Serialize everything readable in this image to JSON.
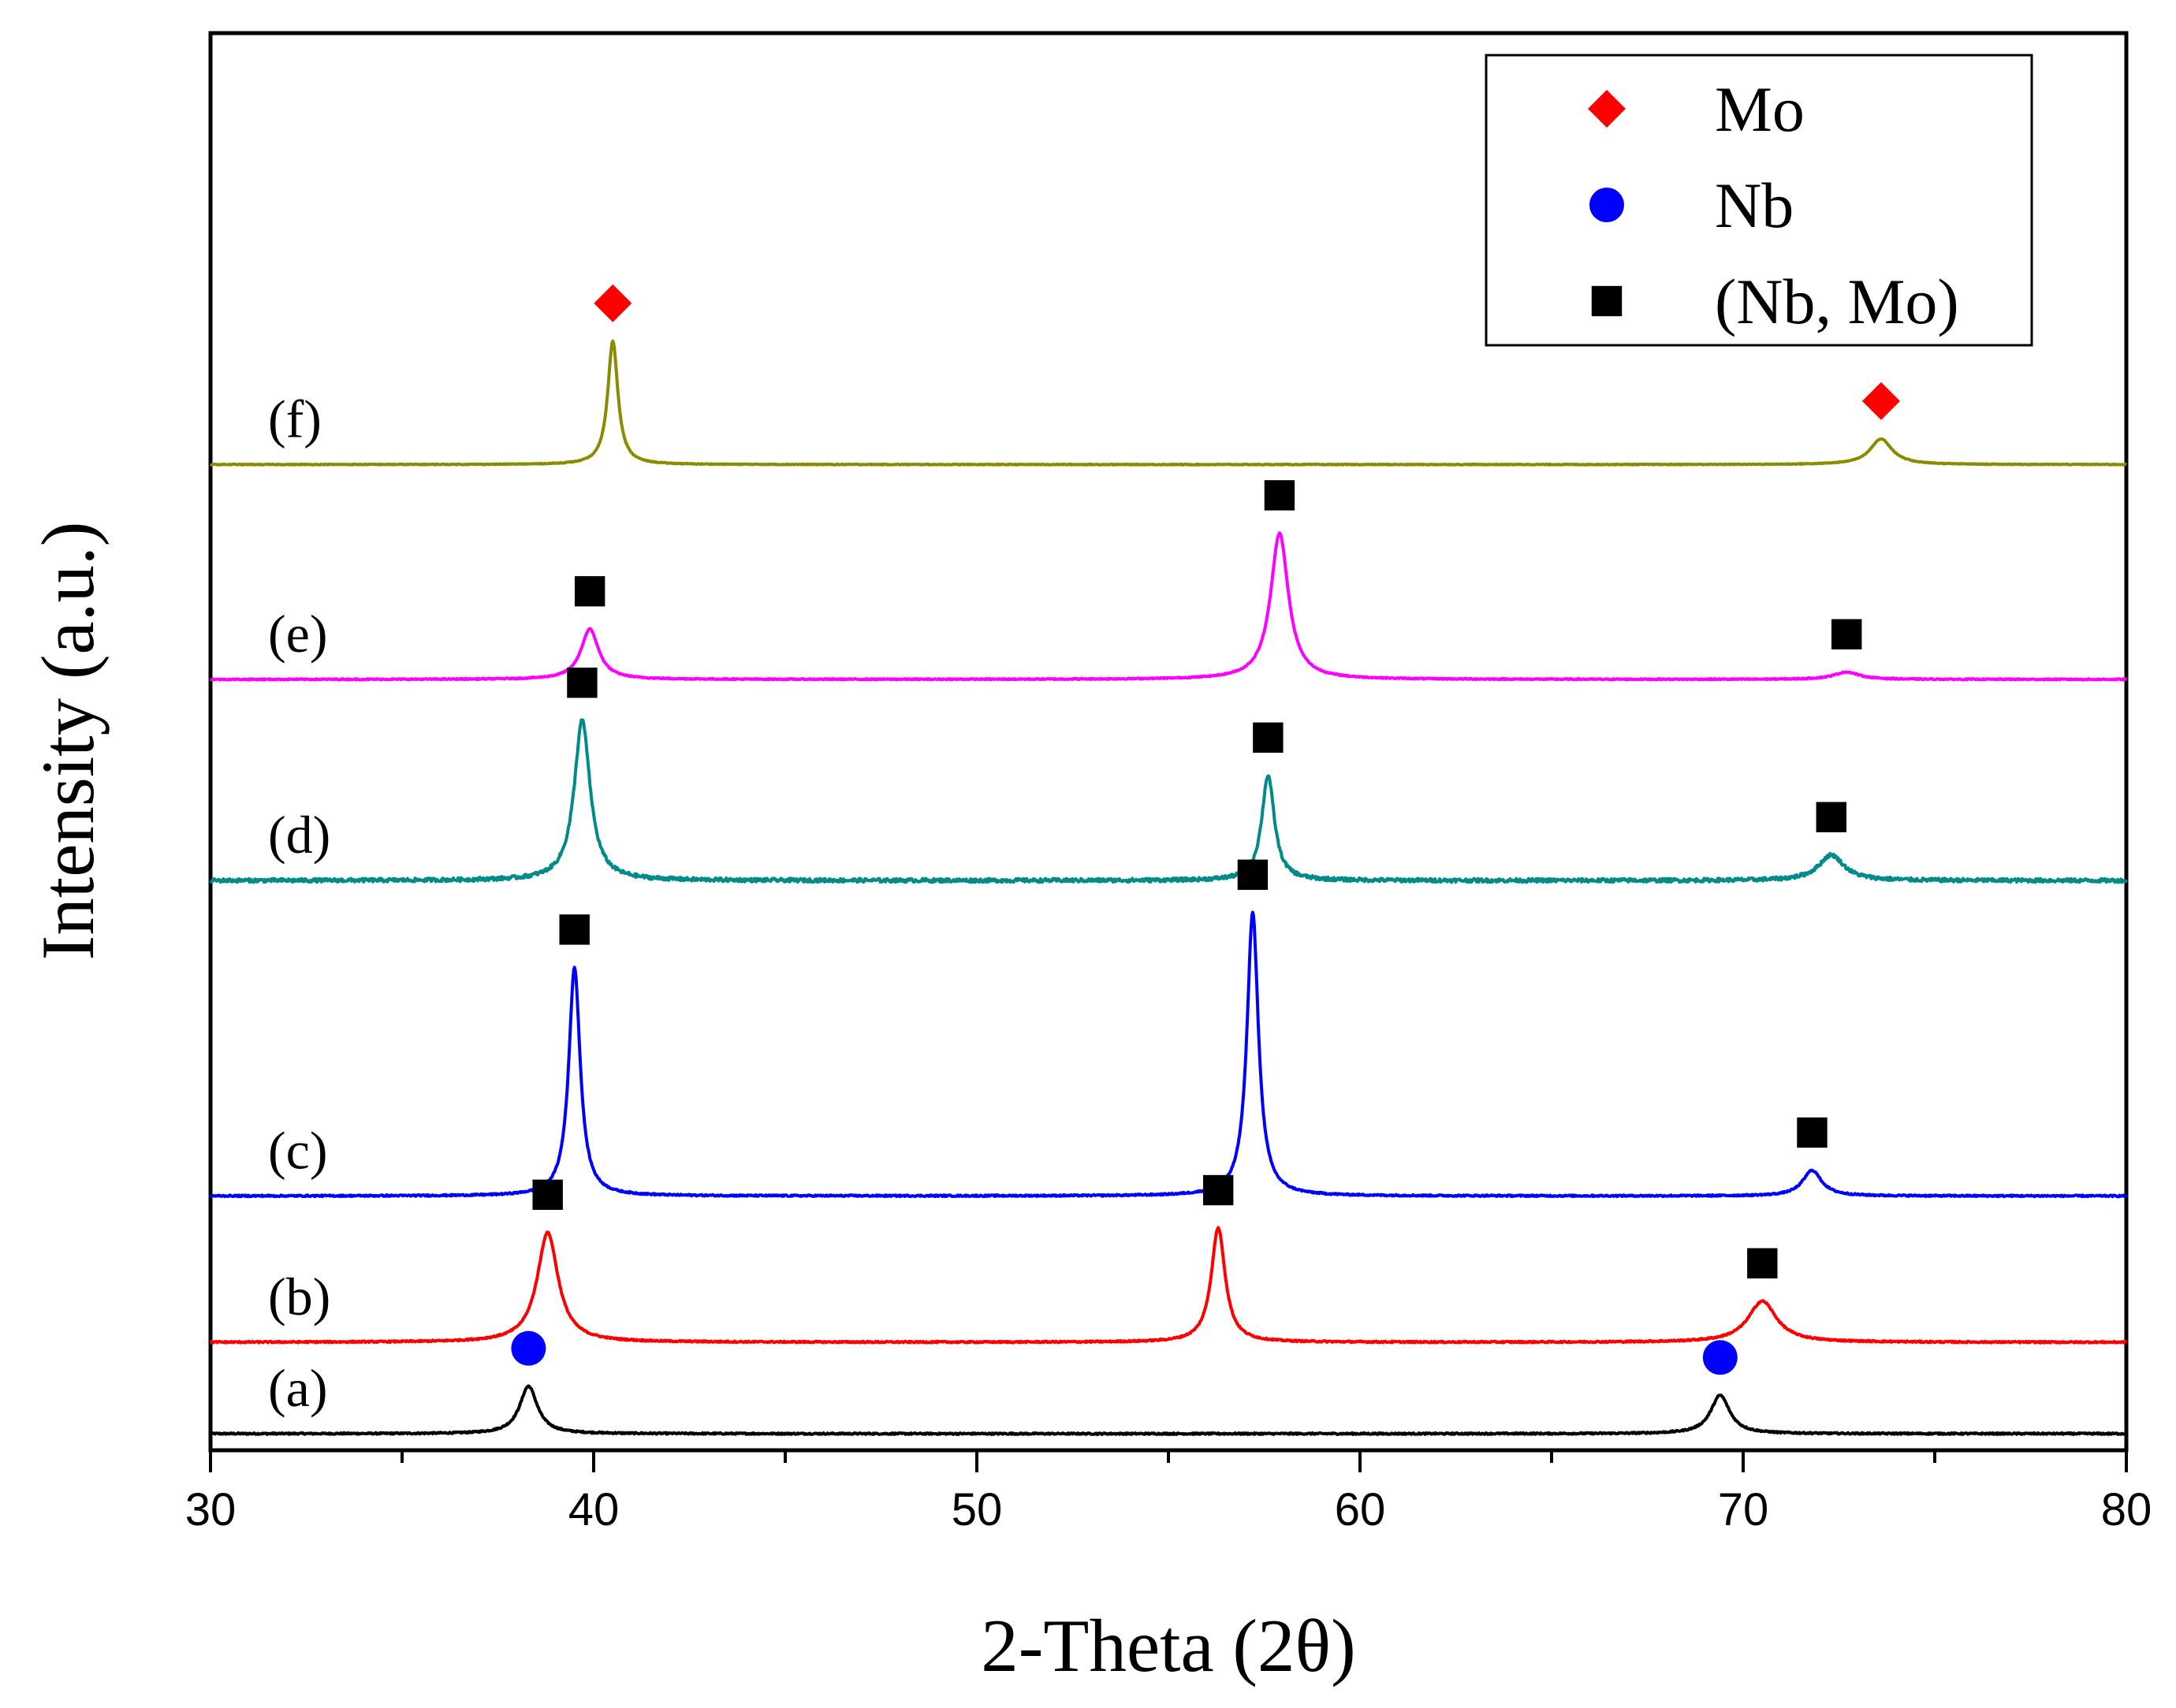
{
  "chart_data": {
    "type": "line",
    "title": "",
    "xlabel": "2-Theta (2θ)",
    "ylabel": "Intensity (a.u.)",
    "xlim": [
      30,
      80
    ],
    "ylim": [
      0,
      11
    ],
    "xticks": [
      30,
      40,
      50,
      60,
      70,
      80
    ],
    "grid": false,
    "legend_position": "top-right",
    "legend": [
      {
        "label": "Mo",
        "marker": "diamond",
        "color": "#ff0000"
      },
      {
        "label": "Nb",
        "marker": "circle",
        "color": "#0000ff"
      },
      {
        "label": "(Nb, Mo)",
        "marker": "square",
        "color": "#000000"
      }
    ],
    "series": [
      {
        "name": "(a)",
        "color": "#000000",
        "baseline": 0.25,
        "noise": 0.008,
        "peaks": [
          {
            "x": 38.3,
            "h": 0.52,
            "w": 0.28,
            "marker": "circle"
          },
          {
            "x": 69.4,
            "h": 0.42,
            "w": 0.3,
            "marker": "circle"
          }
        ]
      },
      {
        "name": "(b)",
        "color": "#ff0000",
        "baseline": 1.25,
        "noise": 0.008,
        "peaks": [
          {
            "x": 38.8,
            "h": 1.2,
            "w": 0.33,
            "marker": "square"
          },
          {
            "x": 56.3,
            "h": 1.25,
            "w": 0.22,
            "marker": "square"
          },
          {
            "x": 70.5,
            "h": 0.45,
            "w": 0.45,
            "marker": "square"
          }
        ]
      },
      {
        "name": "(c)",
        "color": "#0000ff",
        "baseline": 2.85,
        "noise": 0.008,
        "peaks": [
          {
            "x": 39.5,
            "h": 2.5,
            "w": 0.18,
            "marker": "square"
          },
          {
            "x": 57.2,
            "h": 3.1,
            "w": 0.18,
            "marker": "square"
          },
          {
            "x": 71.8,
            "h": 0.28,
            "w": 0.3,
            "marker": "square"
          }
        ]
      },
      {
        "name": "(d)",
        "color": "#008b8b",
        "baseline": 6.3,
        "noise": 0.02,
        "peaks": [
          {
            "x": 39.7,
            "h": 1.75,
            "w": 0.25,
            "marker": "square"
          },
          {
            "x": 57.6,
            "h": 1.15,
            "w": 0.2,
            "marker": "square"
          },
          {
            "x": 72.3,
            "h": 0.28,
            "w": 0.4,
            "marker": "square"
          }
        ]
      },
      {
        "name": "(e)",
        "color": "#ff00ff",
        "baseline": 8.5,
        "noise": 0.006,
        "peaks": [
          {
            "x": 39.9,
            "h": 0.55,
            "w": 0.28,
            "marker": "square"
          },
          {
            "x": 57.9,
            "h": 1.6,
            "w": 0.28,
            "marker": "square"
          },
          {
            "x": 72.7,
            "h": 0.08,
            "w": 0.4,
            "marker": "square"
          }
        ]
      },
      {
        "name": "(f)",
        "color": "#8b8b00",
        "baseline": 10.85,
        "noise": 0.004,
        "peaks": [
          {
            "x": 40.5,
            "h": 1.35,
            "w": 0.16,
            "marker": "diamond"
          },
          {
            "x": 73.6,
            "h": 0.28,
            "w": 0.35,
            "marker": "diamond"
          }
        ]
      }
    ]
  }
}
